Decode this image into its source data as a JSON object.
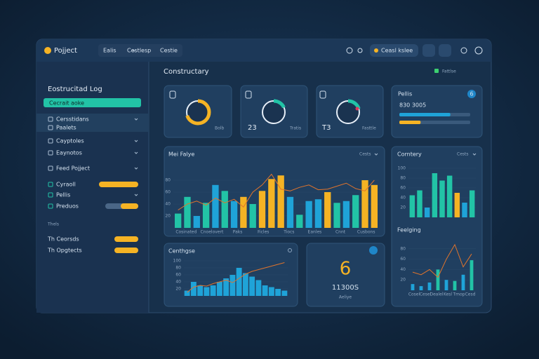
{
  "app": {
    "title": "Pojject",
    "tabs": [
      "Ealis",
      "Cestlesp",
      "Cestie"
    ],
    "action": "Ceasl kslee"
  },
  "sidebar": {
    "title": "Eostrucitad Log",
    "button": "Cecrait aoke",
    "items": [
      "Cersstidans",
      "Paalets",
      "Cayptoles",
      "Eaynotos",
      "Feed Pojject",
      "Cyraoll",
      "Pellis",
      "Preduos"
    ],
    "section": "Thels",
    "items2": [
      "Th Ceorsds",
      "Th Opgtects"
    ]
  },
  "main": {
    "title": "Constructary",
    "status": "Fattlse"
  },
  "cards": [
    {
      "label": "Bolb",
      "donut": 70,
      "color": "#f5b324"
    },
    {
      "value": "23",
      "label": "Tratis",
      "donut": 18,
      "color": "#22c3a6"
    },
    {
      "value": "T3",
      "label": "Fasttle",
      "donut": 20,
      "color": "#22c3a6",
      "accent": "#e0355a"
    }
  ],
  "status_card": {
    "title": "Pellis",
    "badge": "6",
    "value": "830 3005",
    "bars": [
      {
        "value": 72,
        "color": "#1fa3d8"
      },
      {
        "value": 30,
        "color": "#f5b324"
      }
    ]
  },
  "main_chart": {
    "title": "Mei Falye",
    "filter": "Cests",
    "ylim": [
      0,
      100
    ],
    "yticks": [
      20,
      40,
      60,
      80
    ],
    "values": [
      24,
      52,
      20,
      42,
      72,
      62,
      45,
      52,
      40,
      62,
      82,
      88,
      52,
      22,
      45,
      48,
      60,
      42,
      45,
      55,
      80,
      72
    ],
    "colors": [
      "#22c3a6",
      "#22c3a6",
      "#1fa3d8",
      "#22c3a6",
      "#1fa3d8",
      "#22c3a6",
      "#1fa3d8",
      "#f5b324",
      "#22c3a6",
      "#f5b324",
      "#f5b324",
      "#f5b324",
      "#1fa3d8",
      "#22c3a6",
      "#1fa3d8",
      "#1fa3d8",
      "#f5b324",
      "#22c3a6",
      "#1fa3d8",
      "#22c3a6",
      "#f5b324",
      "#f5b324"
    ],
    "line": [
      30,
      40,
      45,
      38,
      50,
      42,
      48,
      35,
      60,
      72,
      90,
      65,
      62,
      68,
      72,
      64,
      65,
      70,
      75,
      66,
      62,
      80
    ],
    "line_color": "#e0742c",
    "xlabels": [
      "Cosinated",
      "Cnoelovert",
      "Paks",
      "Ficles",
      "Tiocs",
      "Eanles",
      "Cnnt",
      "Cusbons"
    ]
  },
  "side_chart": {
    "title": "Corntery",
    "filter": "Cests",
    "ylim": [
      0,
      100
    ],
    "yticks": [
      20,
      40,
      60,
      80,
      100
    ],
    "values": [
      45,
      55,
      20,
      90,
      75,
      85,
      50,
      30,
      55
    ],
    "colors": [
      "#22c3a6",
      "#22c3a6",
      "#1fa3d8",
      "#22c3a6",
      "#22c3a6",
      "#22c3a6",
      "#f5b324",
      "#1fa3d8",
      "#22c3a6"
    ]
  },
  "trend_chart": {
    "title": "Feelging",
    "ylim": [
      0,
      100
    ],
    "yticks": [
      20,
      40,
      60,
      80
    ],
    "values": [
      12,
      8,
      15,
      40,
      20,
      18,
      30,
      58
    ],
    "colors": [
      "#1fa3d8",
      "#1fa3d8",
      "#1fa3d8",
      "#22c3a6",
      "#1fa3d8",
      "#22c3a6",
      "#1fa3d8",
      "#22c3a6"
    ],
    "line": [
      35,
      30,
      40,
      25,
      60,
      88,
      45,
      70
    ],
    "line_color": "#e0742c",
    "xlabels": [
      "Cosel",
      "Cesel",
      "Dealel",
      "Kesl",
      "Tmop",
      "Cesd"
    ]
  },
  "area_chart": {
    "title": "Centhgse",
    "ylim": [
      0,
      100
    ],
    "yticks": [
      20,
      40,
      60,
      80,
      100
    ],
    "values": [
      15,
      40,
      30,
      25,
      30,
      40,
      50,
      60,
      80,
      65,
      55,
      45,
      30,
      25,
      20,
      15
    ],
    "colors": [
      "#1fa3d8"
    ],
    "line": [
      10,
      25,
      30,
      28,
      35,
      40,
      45,
      38,
      50,
      62,
      70,
      75,
      80,
      85,
      90,
      95
    ],
    "line_color": "#e0742c"
  },
  "stat_card": {
    "value": "6",
    "subvalue": "11300S",
    "label": "Aeliye"
  }
}
